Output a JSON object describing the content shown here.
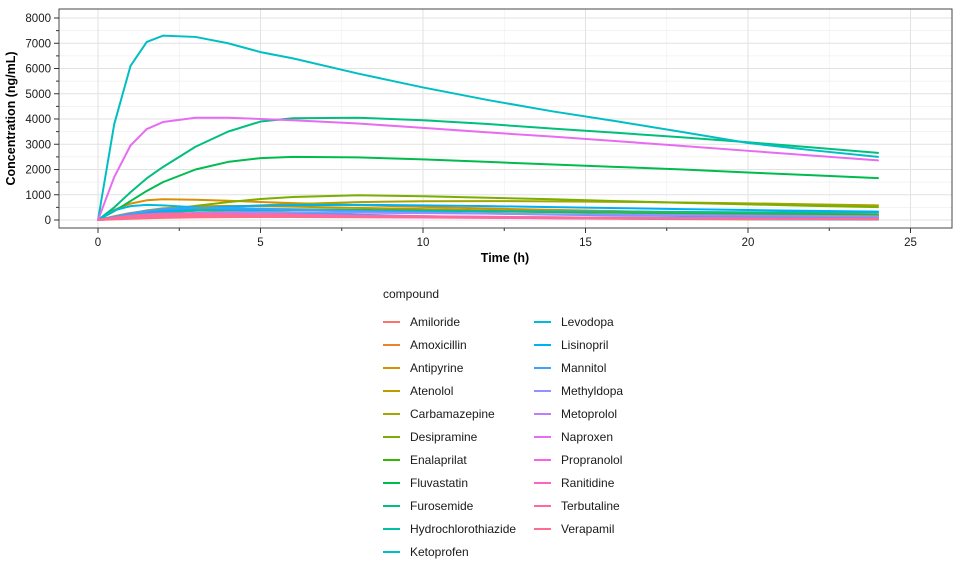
{
  "chart_data": {
    "type": "line",
    "xlabel": "Time (h)",
    "ylabel": "Concentration (ng/mL)",
    "legend_title": "compound",
    "xlim": [
      0,
      25
    ],
    "ylim": [
      0,
      8000
    ],
    "x_ticks": [
      0,
      5,
      10,
      15,
      20,
      25
    ],
    "y_ticks": [
      0,
      1000,
      2000,
      3000,
      4000,
      5000,
      6000,
      7000,
      8000
    ],
    "grid": "major-and-minor",
    "legend_position": "bottom-left-two-columns",
    "x": [
      0,
      0.5,
      1,
      1.5,
      2,
      3,
      4,
      5,
      6,
      8,
      10,
      12,
      14,
      16,
      18,
      20,
      22,
      24
    ],
    "series": [
      {
        "name": "Amiloride",
        "color": "#F8766D",
        "values": [
          0,
          25,
          50,
          70,
          85,
          105,
          115,
          120,
          118,
          110,
          100,
          92,
          84,
          76,
          70,
          64,
          58,
          53
        ]
      },
      {
        "name": "Amoxicillin",
        "color": "#E9842C",
        "values": [
          0,
          150,
          280,
          360,
          400,
          390,
          350,
          300,
          255,
          185,
          130,
          95,
          70,
          50,
          36,
          26,
          19,
          14
        ]
      },
      {
        "name": "Antipyrine",
        "color": "#D79000",
        "values": [
          0,
          400,
          650,
          780,
          820,
          800,
          760,
          715,
          670,
          590,
          520,
          455,
          400,
          350,
          310,
          270,
          240,
          210
        ]
      },
      {
        "name": "Atenolol",
        "color": "#C09B00",
        "values": [
          0,
          120,
          260,
          380,
          460,
          540,
          560,
          550,
          530,
          480,
          430,
          380,
          340,
          300,
          265,
          235,
          205,
          180
        ]
      },
      {
        "name": "Carbamazepine",
        "color": "#A3A500",
        "values": [
          0,
          80,
          160,
          240,
          310,
          420,
          510,
          580,
          630,
          710,
          745,
          750,
          740,
          720,
          695,
          660,
          620,
          580
        ]
      },
      {
        "name": "Desipramine",
        "color": "#7CAE00",
        "values": [
          0,
          70,
          170,
          280,
          380,
          560,
          710,
          830,
          910,
          980,
          940,
          880,
          820,
          750,
          680,
          620,
          560,
          510
        ]
      },
      {
        "name": "Enalaprilat",
        "color": "#39B600",
        "values": [
          0,
          60,
          140,
          220,
          290,
          370,
          420,
          430,
          425,
          400,
          370,
          340,
          310,
          285,
          260,
          240,
          220,
          200
        ]
      },
      {
        "name": "Fluvastatin",
        "color": "#00BB4E",
        "values": [
          0,
          350,
          750,
          1150,
          1500,
          2000,
          2300,
          2450,
          2500,
          2480,
          2400,
          2300,
          2200,
          2100,
          2000,
          1880,
          1770,
          1660
        ]
      },
      {
        "name": "Furosemide",
        "color": "#00BF7D",
        "values": [
          0,
          500,
          1100,
          1650,
          2100,
          2900,
          3500,
          3900,
          4030,
          4050,
          3950,
          3800,
          3620,
          3450,
          3270,
          3080,
          2870,
          2660
        ]
      },
      {
        "name": "Hydrochlorothiazide",
        "color": "#00C1A3",
        "values": [
          0,
          80,
          170,
          250,
          310,
          370,
          395,
          400,
          395,
          380,
          365,
          350,
          335,
          325,
          315,
          305,
          295,
          285
        ]
      },
      {
        "name": "Ketoprofen",
        "color": "#00BFC4",
        "values": [
          0,
          3800,
          6100,
          7050,
          7300,
          7250,
          7000,
          6650,
          6400,
          5800,
          5250,
          4750,
          4300,
          3900,
          3480,
          3050,
          2760,
          2500
        ]
      },
      {
        "name": "Levodopa",
        "color": "#00BADE",
        "values": [
          0,
          380,
          550,
          600,
          580,
          500,
          420,
          350,
          295,
          210,
          150,
          110,
          80,
          60,
          45,
          33,
          25,
          18
        ]
      },
      {
        "name": "Lisinopril",
        "color": "#00B0F6",
        "values": [
          0,
          90,
          190,
          280,
          350,
          460,
          530,
          570,
          590,
          600,
          580,
          550,
          510,
          470,
          430,
          395,
          360,
          330
        ]
      },
      {
        "name": "Mannitol",
        "color": "#3FA1FF",
        "values": [
          0,
          130,
          260,
          360,
          430,
          480,
          470,
          445,
          415,
          355,
          300,
          255,
          215,
          185,
          158,
          135,
          115,
          100
        ]
      },
      {
        "name": "Methyldopa",
        "color": "#9590FF",
        "values": [
          0,
          50,
          110,
          170,
          220,
          280,
          305,
          310,
          305,
          290,
          270,
          250,
          230,
          210,
          193,
          177,
          162,
          148
        ]
      },
      {
        "name": "Metoprolol",
        "color": "#BC80FF",
        "values": [
          0,
          70,
          140,
          195,
          225,
          240,
          232,
          218,
          202,
          172,
          145,
          122,
          103,
          87,
          73,
          62,
          52,
          44
        ]
      },
      {
        "name": "Naproxen",
        "color": "#E76BF3",
        "values": [
          0,
          1700,
          2950,
          3600,
          3880,
          4050,
          4050,
          4000,
          3950,
          3820,
          3650,
          3470,
          3300,
          3120,
          2930,
          2740,
          2550,
          2360
        ]
      },
      {
        "name": "Propranolol",
        "color": "#F863DF",
        "values": [
          0,
          80,
          150,
          180,
          190,
          185,
          172,
          158,
          144,
          120,
          100,
          84,
          70,
          59,
          49,
          41,
          35,
          29
        ]
      },
      {
        "name": "Ranitidine",
        "color": "#FF61C7",
        "values": [
          0,
          90,
          170,
          230,
          255,
          260,
          245,
          228,
          210,
          178,
          150,
          127,
          107,
          91,
          77,
          65,
          55,
          47
        ]
      },
      {
        "name": "Terbutaline",
        "color": "#FF68A1",
        "values": [
          0,
          40,
          80,
          110,
          130,
          148,
          150,
          146,
          140,
          126,
          112,
          100,
          89,
          79,
          70,
          62,
          55,
          49
        ]
      },
      {
        "name": "Verapamil",
        "color": "#FF6C91",
        "values": [
          0,
          90,
          165,
          200,
          210,
          205,
          192,
          178,
          163,
          138,
          116,
          98,
          83,
          70,
          59,
          50,
          43,
          36
        ]
      }
    ],
    "style_colors": {
      "panel_background": "#FFFFFF",
      "panel_border": "#474747",
      "grid_major": "#E2E2E2",
      "grid_minor": "#EFEFEF",
      "tick": "#333333",
      "tick_label": "#1A1A1A",
      "axis_title": "#000000"
    }
  }
}
